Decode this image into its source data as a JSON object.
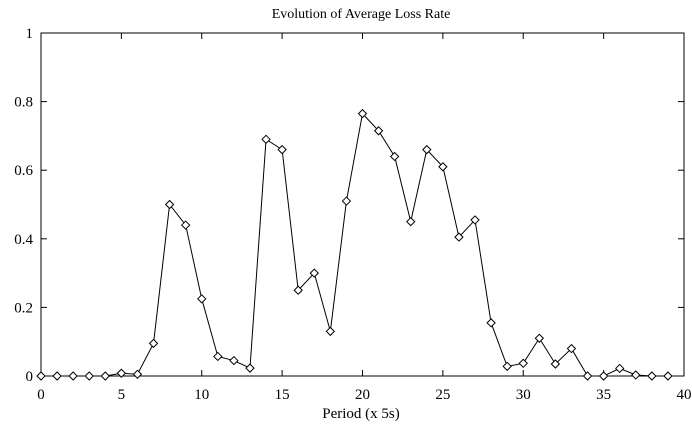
{
  "chart_data": {
    "type": "line",
    "title": "Evolution of Average Loss Rate",
    "xlabel": "Period (x 5s)",
    "ylabel": "",
    "xlim": [
      0,
      40
    ],
    "ylim": [
      0,
      1
    ],
    "x_ticks": [
      0,
      5,
      10,
      15,
      20,
      25,
      30,
      35,
      40
    ],
    "y_ticks": [
      0,
      0.2,
      0.4,
      0.6,
      0.8,
      1
    ],
    "x_tick_labels": [
      "0",
      "5",
      "10",
      "15",
      "20",
      "25",
      "30",
      "35",
      "40"
    ],
    "y_tick_labels": [
      "0",
      "0.2",
      "0.4",
      "0.6",
      "0.8",
      "1"
    ],
    "grid": false,
    "marker": "diamond",
    "colors": {
      "line": "#000000",
      "axes": "#000000",
      "background": "#ffffff"
    },
    "series": [
      {
        "x": [
          0,
          1,
          2,
          3,
          4,
          5,
          6,
          7,
          8,
          9,
          10,
          11,
          12,
          13,
          14,
          15,
          16,
          17,
          18,
          19,
          20,
          21,
          22,
          23,
          24,
          25,
          26,
          27,
          28,
          29,
          30,
          31,
          32,
          33,
          34,
          35,
          36,
          37,
          38,
          39
        ],
        "values": [
          0,
          0,
          0,
          0,
          0,
          0.008,
          0.005,
          0.095,
          0.5,
          0.44,
          0.225,
          0.057,
          0.045,
          0.023,
          0.69,
          0.66,
          0.25,
          0.3,
          0.13,
          0.51,
          0.765,
          0.715,
          0.64,
          0.45,
          0.66,
          0.61,
          0.405,
          0.455,
          0.155,
          0.028,
          0.037,
          0.11,
          0.035,
          0.08,
          0,
          0,
          0.022,
          0.003,
          0,
          0
        ]
      }
    ]
  }
}
